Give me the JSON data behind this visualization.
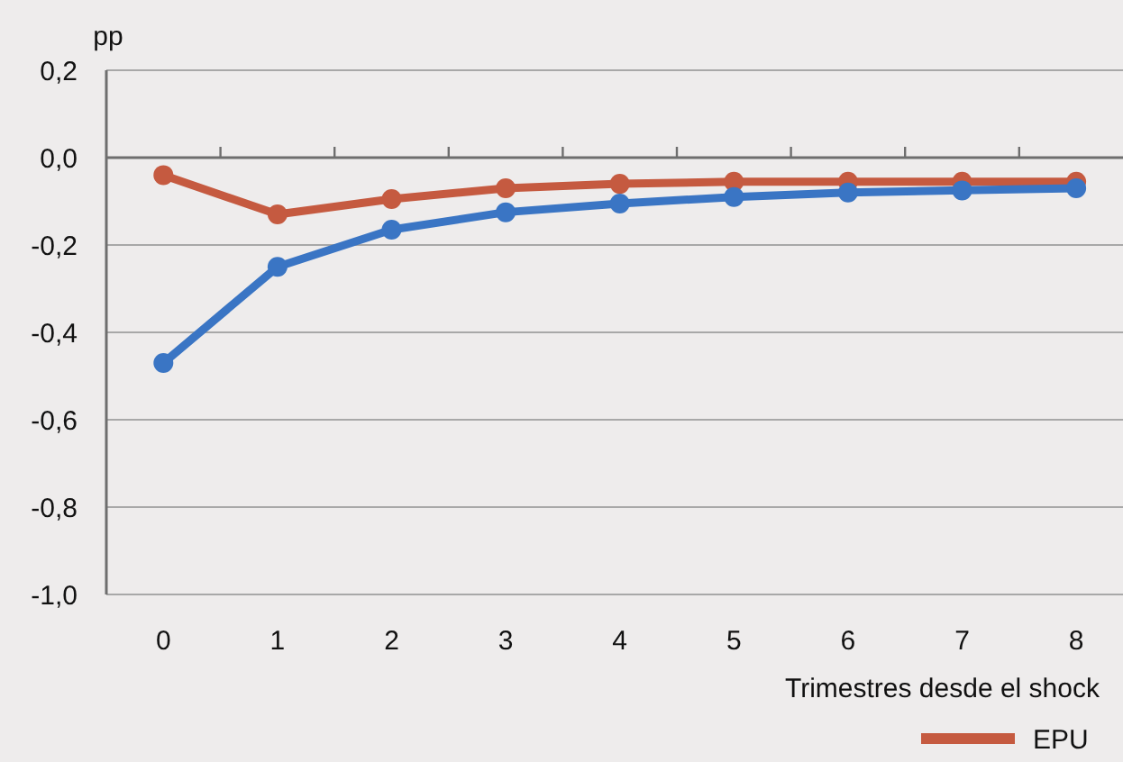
{
  "chart_data": {
    "type": "line",
    "ylabel": "pp",
    "xlabel": "Trimestres desde el shock",
    "categories": [
      "0",
      "1",
      "2",
      "3",
      "4",
      "5",
      "6",
      "7",
      "8"
    ],
    "series": [
      {
        "color": "#3a75c4",
        "values": [
          -0.47,
          -0.25,
          -0.165,
          -0.125,
          -0.105,
          -0.09,
          -0.08,
          -0.075,
          -0.07
        ]
      },
      {
        "name": "EPU",
        "color": "#c55a40",
        "values": [
          -0.04,
          -0.13,
          -0.095,
          -0.07,
          -0.06,
          -0.055,
          -0.055,
          -0.055,
          -0.055
        ]
      }
    ],
    "ylim": [
      -1.0,
      0.2
    ],
    "yticks": [
      {
        "value": -1.0,
        "label": "-1,0"
      },
      {
        "value": -0.8,
        "label": "-0,8"
      },
      {
        "value": -0.6,
        "label": "-0,6"
      },
      {
        "value": -0.4,
        "label": "-0,4"
      },
      {
        "value": -0.2,
        "label": "-0,2"
      },
      {
        "value": 0,
        "label": "0,0"
      },
      {
        "value": 0.2,
        "label": "0,2"
      }
    ],
    "grid": "y",
    "marker": "circle",
    "line_style": "solid",
    "legend": "bottom right"
  }
}
